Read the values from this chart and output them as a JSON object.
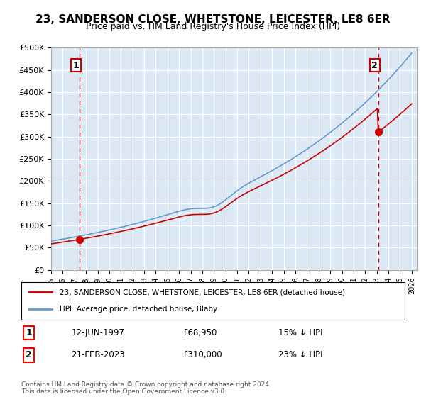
{
  "title": "23, SANDERSON CLOSE, WHETSTONE, LEICESTER, LE8 6ER",
  "subtitle": "Price paid vs. HM Land Registry's House Price Index (HPI)",
  "ylabel": "",
  "ylim": [
    0,
    500000
  ],
  "yticks": [
    0,
    50000,
    100000,
    150000,
    200000,
    250000,
    300000,
    350000,
    400000,
    450000,
    500000
  ],
  "ytick_labels": [
    "£0",
    "£50K",
    "£100K",
    "£150K",
    "£200K",
    "£250K",
    "£300K",
    "£350K",
    "£400K",
    "£450K",
    "£500K"
  ],
  "bg_color": "#dce9f5",
  "plot_bg_color": "#dce9f5",
  "grid_color": "#ffffff",
  "sale1_date": 1997.45,
  "sale1_price": 68950,
  "sale1_label": "1",
  "sale2_date": 2023.12,
  "sale2_price": 310000,
  "sale2_label": "2",
  "legend_line1": "23, SANDERSON CLOSE, WHETSTONE, LEICESTER, LE8 6ER (detached house)",
  "legend_line2": "HPI: Average price, detached house, Blaby",
  "table_row1": [
    "1",
    "12-JUN-1997",
    "£68,950",
    "15% ↓ HPI"
  ],
  "table_row2": [
    "2",
    "21-FEB-2023",
    "£310,000",
    "23% ↓ HPI"
  ],
  "footer": "Contains HM Land Registry data © Crown copyright and database right 2024.\nThis data is licensed under the Open Government Licence v3.0.",
  "hpi_line_color": "#6699cc",
  "sale_line_color": "#cc0000",
  "sale_dot_color": "#cc0000",
  "vline_color": "#cc0000"
}
